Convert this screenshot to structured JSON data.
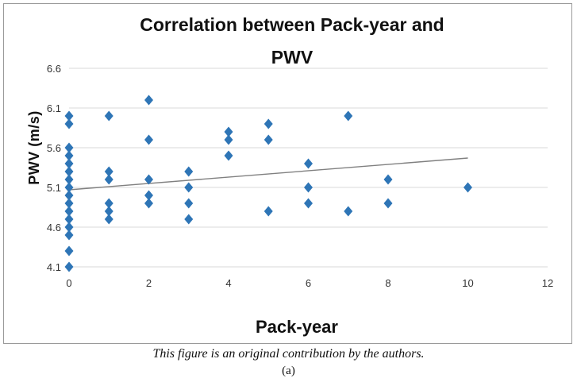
{
  "caption": "This figure is an original contribution by the authors.",
  "sublabel": "(a)",
  "chart_data": {
    "type": "scatter",
    "title_lines": [
      "Correlation between Pack-year and",
      "PWV"
    ],
    "xlabel": "Pack-year",
    "ylabel": "PWV (m/s)",
    "xlim": [
      0,
      12
    ],
    "ylim": [
      4.1,
      6.6
    ],
    "xticks": [
      "0",
      "2",
      "4",
      "6",
      "8",
      "10",
      "12"
    ],
    "yticks": [
      "4.1",
      "4.6",
      "5.1",
      "5.6",
      "6.1",
      "6.6"
    ],
    "grid": true,
    "marker": "diamond",
    "marker_color": "#2E75B6",
    "trendline": {
      "x": [
        0,
        10
      ],
      "y": [
        5.07,
        5.47
      ],
      "color": "#808080"
    },
    "points": [
      [
        0,
        6.0
      ],
      [
        0,
        5.9
      ],
      [
        0,
        5.6
      ],
      [
        0,
        5.5
      ],
      [
        0,
        5.4
      ],
      [
        0,
        5.3
      ],
      [
        0,
        5.2
      ],
      [
        0,
        5.1
      ],
      [
        0,
        5.0
      ],
      [
        0,
        4.9
      ],
      [
        0,
        4.8
      ],
      [
        0,
        4.7
      ],
      [
        0,
        4.6
      ],
      [
        0,
        4.5
      ],
      [
        0,
        4.3
      ],
      [
        0,
        4.1
      ],
      [
        1,
        6.0
      ],
      [
        1,
        5.3
      ],
      [
        1,
        5.2
      ],
      [
        1,
        4.9
      ],
      [
        1,
        4.8
      ],
      [
        1,
        4.7
      ],
      [
        2,
        6.2
      ],
      [
        2,
        5.7
      ],
      [
        2,
        5.2
      ],
      [
        2,
        5.0
      ],
      [
        2,
        4.9
      ],
      [
        3,
        5.3
      ],
      [
        3,
        5.1
      ],
      [
        3,
        4.9
      ],
      [
        3,
        4.7
      ],
      [
        4,
        5.8
      ],
      [
        4,
        5.7
      ],
      [
        4,
        5.5
      ],
      [
        5,
        5.9
      ],
      [
        5,
        5.7
      ],
      [
        5,
        4.8
      ],
      [
        6,
        5.4
      ],
      [
        6,
        5.1
      ],
      [
        6,
        4.9
      ],
      [
        7,
        6.0
      ],
      [
        7,
        4.8
      ],
      [
        8,
        5.2
      ],
      [
        8,
        4.9
      ],
      [
        10,
        5.1
      ]
    ]
  }
}
